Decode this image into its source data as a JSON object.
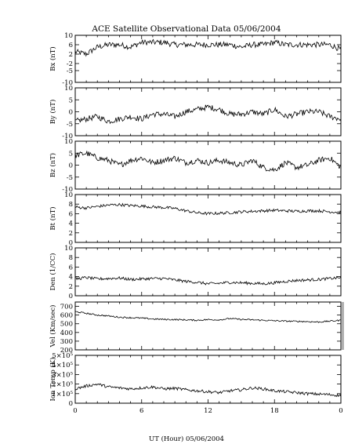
{
  "chart_data": {
    "type": "line",
    "title": "ACE Satellite Observational Data   05/06/2004",
    "xlabel": "UT (Hour)   05/06/2004",
    "x_ticks": [
      "0",
      "6",
      "12",
      "18",
      "0"
    ],
    "xlim": [
      0,
      24
    ],
    "grid": false,
    "line_color": "#000000",
    "panels": [
      {
        "ylabel": "Bx (nT)",
        "ylim": [
          -10,
          10
        ],
        "yticks": [
          "-10",
          "-5",
          "-2",
          "2",
          "6",
          "10"
        ],
        "ytick_values": [
          -10,
          -5,
          -2,
          2,
          6,
          10
        ],
        "series": {
          "x": [
            0,
            1,
            2,
            3,
            4,
            5,
            6,
            7,
            8,
            9,
            10,
            11,
            12,
            13,
            14,
            15,
            16,
            17,
            18,
            19,
            20,
            21,
            22,
            23,
            24
          ],
          "y": [
            3,
            2,
            5,
            6,
            6,
            5,
            7,
            7,
            7,
            6,
            6,
            6,
            6,
            6,
            6,
            5,
            6,
            6,
            7,
            6,
            6,
            6,
            6,
            6,
            4
          ]
        }
      },
      {
        "ylabel": "By (nT)",
        "ylim": [
          -10,
          10
        ],
        "yticks": [
          "-10",
          "-5",
          "0",
          "5",
          "10"
        ],
        "ytick_values": [
          -10,
          -5,
          0,
          5,
          10
        ],
        "series": {
          "x": [
            0,
            1,
            2,
            3,
            4,
            5,
            6,
            7,
            8,
            9,
            10,
            11,
            12,
            13,
            14,
            15,
            16,
            17,
            18,
            19,
            20,
            21,
            22,
            23,
            24
          ],
          "y": [
            -4,
            -3,
            -2,
            -4,
            -3,
            -2,
            -3,
            -1,
            -1,
            -2,
            0,
            1,
            2,
            1,
            -1,
            -1,
            0,
            -1,
            1,
            -2,
            -1,
            0,
            0,
            -2,
            -3
          ]
        }
      },
      {
        "ylabel": "Bz (nT)",
        "ylim": [
          -10,
          10
        ],
        "yticks": [
          "-10",
          "-5",
          "0",
          "5",
          "10"
        ],
        "ytick_values": [
          -10,
          -5,
          0,
          5,
          10
        ],
        "series": {
          "x": [
            0,
            1,
            2,
            3,
            4,
            5,
            6,
            7,
            8,
            9,
            10,
            11,
            12,
            13,
            14,
            15,
            16,
            17,
            18,
            19,
            20,
            21,
            22,
            23,
            24
          ],
          "y": [
            4,
            5,
            3,
            2,
            0,
            2,
            3,
            1,
            2,
            3,
            1,
            2,
            1,
            2,
            1,
            0,
            2,
            -1,
            -2,
            1,
            -1,
            0,
            2,
            3,
            -1
          ]
        }
      },
      {
        "ylabel": "Bt (nT)",
        "ylim": [
          0,
          10
        ],
        "yticks": [
          "0",
          "2",
          "4",
          "6",
          "8",
          "10"
        ],
        "ytick_values": [
          0,
          2,
          4,
          6,
          8,
          10
        ],
        "series": {
          "x": [
            0,
            1,
            2,
            3,
            4,
            5,
            6,
            7,
            8,
            9,
            10,
            11,
            12,
            13,
            14,
            15,
            16,
            17,
            18,
            19,
            20,
            21,
            22,
            23,
            24
          ],
          "y": [
            7.4,
            7.2,
            7.5,
            7.8,
            7.9,
            7.7,
            7.6,
            7.4,
            7.3,
            7.1,
            6.6,
            6.2,
            6.0,
            6.1,
            6.2,
            6.4,
            6.5,
            6.6,
            6.7,
            6.6,
            6.5,
            6.6,
            6.6,
            6.4,
            6.3
          ]
        }
      },
      {
        "ylabel": "Den (1/CC)",
        "ylim": [
          0,
          10
        ],
        "yticks": [
          "0",
          "2",
          "4",
          "6",
          "8",
          "10"
        ],
        "ytick_values": [
          0,
          2,
          4,
          6,
          8,
          10
        ],
        "series": {
          "x": [
            0,
            1,
            2,
            3,
            4,
            5,
            6,
            7,
            8,
            9,
            10,
            11,
            12,
            13,
            14,
            15,
            16,
            17,
            18,
            19,
            20,
            21,
            22,
            23,
            24
          ],
          "y": [
            3.5,
            3.8,
            3.5,
            3.6,
            3.7,
            3.4,
            3.5,
            3.6,
            3.6,
            3.3,
            3.0,
            2.8,
            2.5,
            2.6,
            2.8,
            2.7,
            2.6,
            2.5,
            2.7,
            3.0,
            3.2,
            3.3,
            3.4,
            3.6,
            3.8
          ]
        }
      },
      {
        "ylabel": "Vel (Km/sec)",
        "ylim": [
          200,
          750
        ],
        "yticks": [
          "200",
          "300",
          "400",
          "500",
          "600",
          "700"
        ],
        "ytick_values": [
          200,
          300,
          400,
          500,
          600,
          700
        ],
        "series": {
          "x": [
            0,
            1,
            2,
            3,
            4,
            5,
            6,
            7,
            8,
            9,
            10,
            11,
            12,
            13,
            14,
            15,
            16,
            17,
            18,
            19,
            20,
            21,
            22,
            23,
            24
          ],
          "y": [
            640,
            620,
            600,
            590,
            575,
            570,
            565,
            555,
            550,
            548,
            545,
            540,
            548,
            545,
            560,
            550,
            545,
            540,
            535,
            530,
            528,
            525,
            520,
            530,
            540
          ]
        }
      },
      {
        "ylabel": "Ion Temp (K)",
        "ylim": [
          0,
          500000
        ],
        "yticks": [
          "0",
          "1×10⁵",
          "2×10⁵",
          "3×10⁵",
          "4×10⁵",
          "5×10⁵"
        ],
        "ytick_values": [
          0,
          100000,
          200000,
          300000,
          400000,
          500000
        ],
        "series": {
          "x": [
            0,
            1,
            2,
            3,
            4,
            5,
            6,
            7,
            8,
            9,
            10,
            11,
            12,
            13,
            14,
            15,
            16,
            17,
            18,
            19,
            20,
            21,
            22,
            23,
            24
          ],
          "y": [
            150000,
            180000,
            200000,
            170000,
            160000,
            150000,
            160000,
            170000,
            150000,
            155000,
            140000,
            130000,
            120000,
            110000,
            130000,
            140000,
            160000,
            150000,
            130000,
            120000,
            110000,
            100000,
            95000,
            90000,
            80000
          ]
        }
      }
    ]
  }
}
